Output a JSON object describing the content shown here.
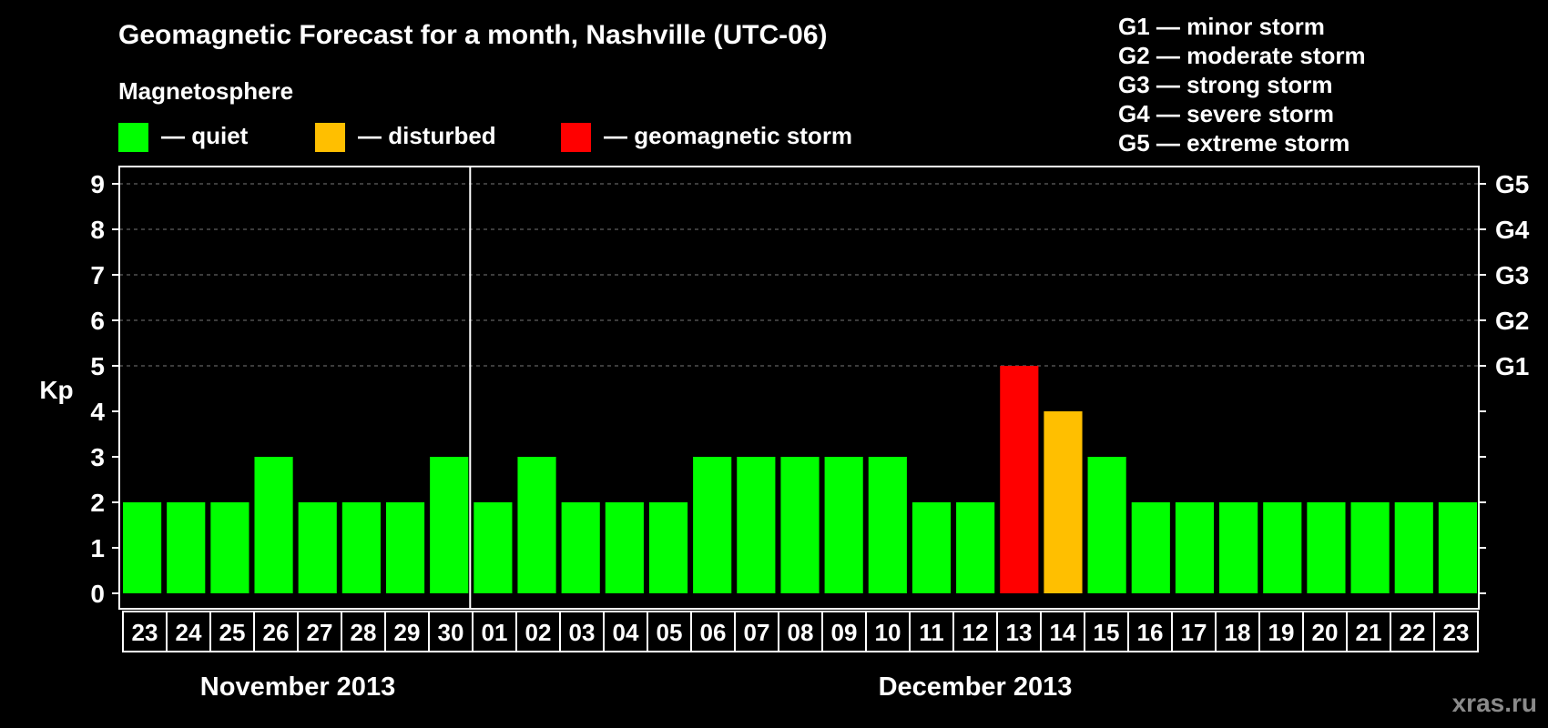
{
  "title": "Geomagnetic Forecast for a month, Nashville (UTC-06)",
  "legend": {
    "heading": "Magnetosphere",
    "items": [
      {
        "label": "— quiet",
        "color": "#00ff00"
      },
      {
        "label": "— disturbed",
        "color": "#ffbf00"
      },
      {
        "label": "— geomagnetic storm",
        "color": "#ff0000"
      }
    ]
  },
  "storm_scale": [
    "G1 — minor storm",
    "G2 — moderate storm",
    "G3 — strong storm",
    "G4 — severe storm",
    "G5 — extreme storm"
  ],
  "watermark": "xras.ru",
  "chart_data": {
    "type": "bar",
    "ylabel": "Kp",
    "ylim": [
      0,
      9
    ],
    "yticks": [
      "0",
      "1",
      "2",
      "3",
      "4",
      "5",
      "6",
      "7",
      "8",
      "9"
    ],
    "right_axis": [
      {
        "kp": 5,
        "label": "G1"
      },
      {
        "kp": 6,
        "label": "G2"
      },
      {
        "kp": 7,
        "label": "G3"
      },
      {
        "kp": 8,
        "label": "G4"
      },
      {
        "kp": 9,
        "label": "G5"
      }
    ],
    "grid": "dashed horizontal at 5-9",
    "months": [
      {
        "label": "November 2013",
        "days": [
          "23",
          "24",
          "25",
          "26",
          "27",
          "28",
          "29",
          "30"
        ]
      },
      {
        "label": "December 2013",
        "days": [
          "01",
          "02",
          "03",
          "04",
          "05",
          "06",
          "07",
          "08",
          "09",
          "10",
          "11",
          "12",
          "13",
          "14",
          "15",
          "16",
          "17",
          "18",
          "19",
          "20",
          "21",
          "22",
          "23"
        ]
      }
    ],
    "categories": [
      "23",
      "24",
      "25",
      "26",
      "27",
      "28",
      "29",
      "30",
      "01",
      "02",
      "03",
      "04",
      "05",
      "06",
      "07",
      "08",
      "09",
      "10",
      "11",
      "12",
      "13",
      "14",
      "15",
      "16",
      "17",
      "18",
      "19",
      "20",
      "21",
      "22",
      "23"
    ],
    "values": [
      2,
      2,
      2,
      3,
      2,
      2,
      2,
      3,
      2,
      3,
      2,
      2,
      2,
      3,
      3,
      3,
      3,
      3,
      2,
      2,
      5,
      4,
      3,
      2,
      2,
      2,
      2,
      2,
      2,
      2,
      2
    ]
  }
}
